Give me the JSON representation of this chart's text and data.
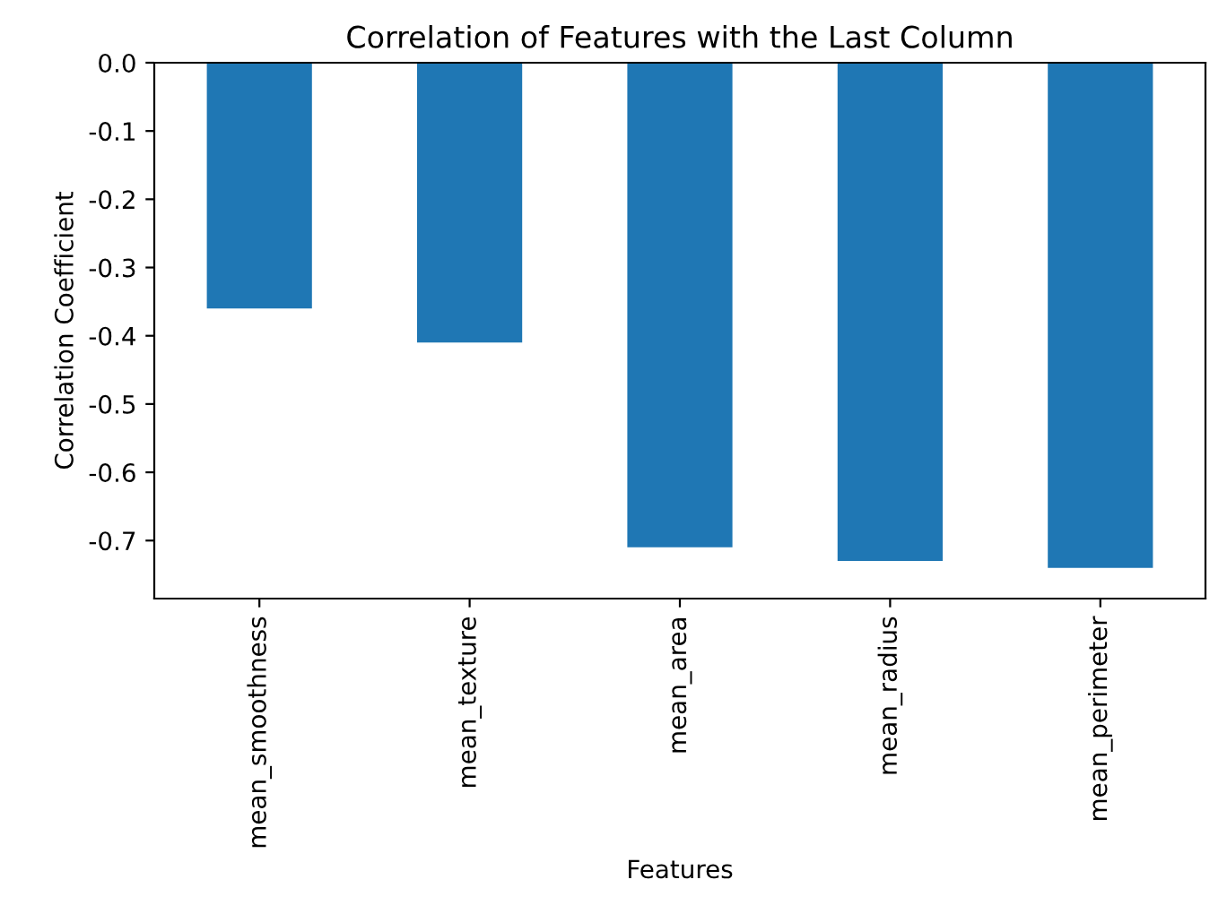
{
  "chart_data": {
    "type": "bar",
    "title": "Correlation of Features with the Last Column",
    "xlabel": "Features",
    "ylabel": "Correlation Coefficient",
    "categories": [
      "mean_smoothness",
      "mean_texture",
      "mean_area",
      "mean_radius",
      "mean_perimeter"
    ],
    "values": [
      -0.36,
      -0.41,
      -0.71,
      -0.73,
      -0.74
    ],
    "color": "#1f77b4",
    "ylim": [
      -0.785,
      0.0
    ],
    "yticks": [
      {
        "value": 0.0,
        "label": "0.0"
      },
      -0.1,
      -0.2,
      -0.3,
      -0.4,
      -0.5,
      -0.6,
      -0.7
    ],
    "grid": false
  }
}
